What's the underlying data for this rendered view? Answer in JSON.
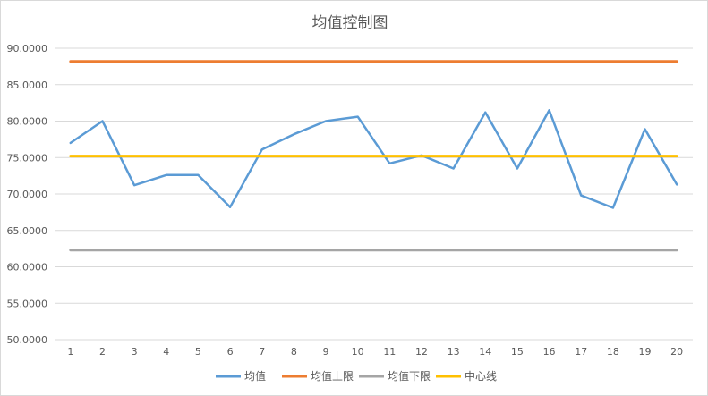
{
  "chart_data": {
    "type": "line",
    "title": "均值控制图",
    "xlabel": "",
    "ylabel": "",
    "categories": [
      "1",
      "2",
      "3",
      "4",
      "5",
      "6",
      "7",
      "8",
      "9",
      "10",
      "11",
      "12",
      "13",
      "14",
      "15",
      "16",
      "17",
      "18",
      "19",
      "20"
    ],
    "ylim": [
      50,
      90
    ],
    "y_ticks": [
      "50.0000",
      "55.0000",
      "60.0000",
      "65.0000",
      "70.0000",
      "75.0000",
      "80.0000",
      "85.0000",
      "90.0000"
    ],
    "grid": true,
    "legend_position": "bottom",
    "series": [
      {
        "name": "均值",
        "color": "#5b9bd5",
        "values": [
          77.0,
          80.0,
          71.2,
          72.6,
          72.6,
          68.2,
          76.1,
          78.2,
          80.0,
          80.6,
          74.2,
          75.3,
          73.5,
          81.2,
          73.5,
          81.5,
          69.8,
          68.1,
          78.9,
          71.3
        ]
      },
      {
        "name": "均值上限",
        "color": "#ed7d31",
        "values": [
          88.2,
          88.2,
          88.2,
          88.2,
          88.2,
          88.2,
          88.2,
          88.2,
          88.2,
          88.2,
          88.2,
          88.2,
          88.2,
          88.2,
          88.2,
          88.2,
          88.2,
          88.2,
          88.2,
          88.2
        ]
      },
      {
        "name": "均值下限",
        "color": "#a5a5a5",
        "values": [
          62.3,
          62.3,
          62.3,
          62.3,
          62.3,
          62.3,
          62.3,
          62.3,
          62.3,
          62.3,
          62.3,
          62.3,
          62.3,
          62.3,
          62.3,
          62.3,
          62.3,
          62.3,
          62.3,
          62.3
        ]
      },
      {
        "name": "中心线",
        "color": "#ffc000",
        "values": [
          75.2,
          75.2,
          75.2,
          75.2,
          75.2,
          75.2,
          75.2,
          75.2,
          75.2,
          75.2,
          75.2,
          75.2,
          75.2,
          75.2,
          75.2,
          75.2,
          75.2,
          75.2,
          75.2,
          75.2
        ]
      }
    ]
  }
}
